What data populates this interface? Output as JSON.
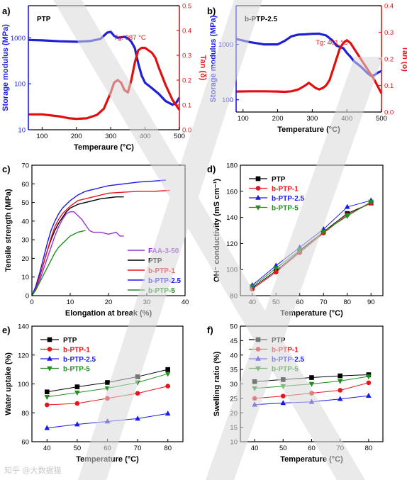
{
  "figure": {
    "watermark_text": "知乎 @大数据猫",
    "colors": {
      "black": "#000000",
      "red": "#e8161c",
      "blue": "#1a1ae6",
      "green": "#1f8f1f",
      "purple": "#9b30d9",
      "thick_red": "#e01010",
      "thick_blue": "#1f1fd6"
    }
  },
  "chart_data": [
    {
      "id": "a",
      "panel_label": "a)",
      "type": "line",
      "dual_axis": true,
      "inset_label": "PTP",
      "annotation": "Tg: 387 °C",
      "xlabel": "Temperaure (°C)",
      "ylabel": "Storage modulus (MPa)",
      "y2label": "Tan (δ)",
      "xlim": [
        60,
        500
      ],
      "xticks": [
        100,
        200,
        300,
        400,
        500
      ],
      "ylim": [
        10,
        5000
      ],
      "yscale": "log",
      "yticks": [
        10,
        100,
        1000
      ],
      "y2lim": [
        0,
        0.5
      ],
      "y2ticks": [
        0.0,
        0.1,
        0.2,
        0.3,
        0.4,
        0.5
      ],
      "series": [
        {
          "axis": "left",
          "color": "#1f1fd6",
          "x": [
            60,
            100,
            150,
            200,
            240,
            270,
            290,
            300,
            310,
            320,
            340,
            350,
            360,
            370,
            380,
            390,
            400,
            420,
            440,
            460,
            480,
            490,
            500
          ],
          "y": [
            900,
            880,
            840,
            820,
            850,
            950,
            1300,
            1350,
            1100,
            1000,
            1050,
            980,
            820,
            600,
            280,
            150,
            105,
            80,
            60,
            42,
            35,
            38,
            50
          ]
        },
        {
          "axis": "right",
          "color": "#e01010",
          "x": [
            60,
            100,
            150,
            180,
            200,
            230,
            260,
            280,
            300,
            310,
            320,
            330,
            340,
            350,
            360,
            370,
            380,
            390,
            400,
            410,
            420,
            430,
            440,
            460,
            480,
            500
          ],
          "y": [
            0.062,
            0.062,
            0.054,
            0.046,
            0.044,
            0.046,
            0.06,
            0.085,
            0.15,
            0.19,
            0.2,
            0.19,
            0.16,
            0.15,
            0.2,
            0.27,
            0.32,
            0.33,
            0.33,
            0.32,
            0.31,
            0.29,
            0.25,
            0.18,
            0.12,
            0.08
          ]
        }
      ]
    },
    {
      "id": "b",
      "panel_label": "b)",
      "type": "line",
      "dual_axis": true,
      "inset_label": "b-PTP-2.5",
      "annotation": "Tg: 401 °C",
      "xlabel": "Temperature (°C)",
      "ylabel": "Storage modulus (MPa)",
      "y2label": "Tan (δ)",
      "xlim": [
        80,
        500
      ],
      "xticks": [
        100,
        200,
        300,
        400,
        500
      ],
      "ylim": [
        60,
        5000
      ],
      "yscale": "log",
      "yticks": [
        100,
        1000
      ],
      "y2lim": [
        0,
        0.4
      ],
      "y2ticks": [
        0.0,
        0.1,
        0.2,
        0.3,
        0.4
      ],
      "series": [
        {
          "axis": "left",
          "color": "#1f1fd6",
          "x": [
            80,
            120,
            160,
            200,
            220,
            240,
            260,
            280,
            300,
            320,
            340,
            360,
            370,
            380,
            390,
            400,
            410,
            420,
            440,
            460,
            470,
            480,
            490,
            500
          ],
          "y": [
            1250,
            1100,
            1000,
            1000,
            1150,
            1400,
            1500,
            1520,
            1550,
            1560,
            1450,
            1150,
            950,
            900,
            850,
            700,
            600,
            500,
            400,
            300,
            270,
            280,
            310,
            330
          ]
        },
        {
          "axis": "right",
          "color": "#e01010",
          "x": [
            80,
            120,
            160,
            200,
            220,
            240,
            260,
            280,
            290,
            300,
            310,
            320,
            330,
            340,
            350,
            360,
            370,
            380,
            390,
            400,
            410,
            420,
            440,
            460,
            480,
            500
          ],
          "y": [
            0.077,
            0.078,
            0.078,
            0.077,
            0.076,
            0.078,
            0.085,
            0.1,
            0.11,
            0.1,
            0.09,
            0.085,
            0.09,
            0.1,
            0.12,
            0.16,
            0.2,
            0.24,
            0.26,
            0.27,
            0.26,
            0.24,
            0.2,
            0.16,
            0.12,
            0.07
          ]
        }
      ]
    },
    {
      "id": "c",
      "panel_label": "c)",
      "type": "line",
      "xlabel": "Elongation at break (%)",
      "ylabel": "Tensile strength (MPa)",
      "xlim": [
        0,
        40
      ],
      "xticks": [
        0,
        10,
        20,
        30,
        40
      ],
      "ylim": [
        0,
        70
      ],
      "yticks": [
        0,
        10,
        20,
        30,
        40,
        50,
        60,
        70
      ],
      "legend_position": "bottom-right",
      "series": [
        {
          "name": "FAA-3-50",
          "color": "#9b30d9",
          "x": [
            0,
            1,
            2,
            3,
            4,
            5,
            6,
            7,
            8,
            9,
            10,
            11,
            12,
            13,
            14,
            15,
            16,
            17,
            18,
            20,
            22,
            23,
            24
          ],
          "y": [
            0,
            3,
            8,
            14,
            20,
            26,
            32,
            37,
            41,
            44,
            45,
            45,
            43,
            41,
            38,
            35,
            34,
            34,
            34,
            33,
            34,
            32,
            32
          ]
        },
        {
          "name": "PTP",
          "color": "#000000",
          "x": [
            0,
            1,
            2,
            3,
            4,
            5,
            6,
            7,
            8,
            9,
            10,
            12,
            14,
            16,
            18,
            20,
            22,
            24
          ],
          "y": [
            0,
            4,
            10,
            17,
            24,
            30,
            35,
            39,
            42,
            45,
            47,
            49,
            50,
            51,
            52,
            52.5,
            53,
            53
          ]
        },
        {
          "name": "b-PTP-1",
          "color": "#e8161c",
          "x": [
            0,
            1,
            2,
            3,
            4,
            5,
            6,
            7,
            8,
            10,
            12,
            14,
            16,
            18,
            20,
            24,
            28,
            32,
            36
          ],
          "y": [
            0,
            4,
            10,
            17,
            24,
            31,
            37,
            41,
            44,
            48,
            51,
            52,
            53,
            54,
            55,
            55.5,
            56,
            56,
            56.5
          ]
        },
        {
          "name": "b-PTP-2.5",
          "color": "#1a1ae6",
          "x": [
            0,
            1,
            2,
            3,
            4,
            5,
            6,
            7,
            8,
            10,
            12,
            14,
            16,
            18,
            20,
            24,
            28,
            32,
            35
          ],
          "y": [
            0,
            5,
            12,
            20,
            28,
            35,
            40,
            44,
            47,
            51,
            54,
            56,
            57,
            58,
            59,
            60,
            61,
            61.5,
            62
          ]
        },
        {
          "name": "b-PTP-5",
          "color": "#1f8f1f",
          "x": [
            0,
            1,
            2,
            3,
            4,
            5,
            6,
            7,
            8,
            9,
            10,
            11,
            12,
            13,
            14
          ],
          "y": [
            0,
            3,
            7,
            11,
            15,
            19,
            23,
            26,
            28,
            30,
            32,
            33,
            34,
            34.5,
            35
          ]
        }
      ]
    },
    {
      "id": "d",
      "panel_label": "d)",
      "type": "line",
      "xlabel": "Temperature (°C)",
      "ylabel": "OH⁻ conductivity (mS cm⁻¹)",
      "xlim": [
        35,
        95
      ],
      "xticks": [
        40,
        50,
        60,
        70,
        80,
        90
      ],
      "ylim": [
        80,
        180
      ],
      "yticks": [
        80,
        100,
        120,
        140,
        160,
        180
      ],
      "legend_position": "top-left",
      "x": [
        40,
        50,
        60,
        70,
        80,
        90
      ],
      "series": [
        {
          "name": "PTP",
          "marker": "square",
          "color": "#000000",
          "values": [
            86,
            99,
            114,
            129,
            143,
            151
          ]
        },
        {
          "name": "b-PTP-1",
          "marker": "circle",
          "color": "#e8161c",
          "values": [
            85,
            98,
            113,
            128,
            142,
            151
          ]
        },
        {
          "name": "b-PTP-2.5",
          "marker": "triangle-up",
          "color": "#1a1ae6",
          "values": [
            88,
            103,
            117,
            131,
            148,
            153
          ]
        },
        {
          "name": "b-PTP-5",
          "marker": "triangle-down",
          "color": "#1f8f1f",
          "values": [
            87,
            101,
            115,
            129,
            141,
            152
          ]
        }
      ]
    },
    {
      "id": "e",
      "panel_label": "e)",
      "type": "line",
      "xlabel": "Temperature (°C)",
      "ylabel": "Water uptake (%)",
      "xlim": [
        35,
        85
      ],
      "xticks": [
        40,
        50,
        60,
        70,
        80
      ],
      "ylim": [
        60,
        140
      ],
      "yticks": [
        60,
        80,
        100,
        120,
        140
      ],
      "legend_position": "top-left",
      "x": [
        40,
        50,
        60,
        70,
        80
      ],
      "series": [
        {
          "name": "PTP",
          "marker": "square",
          "color": "#000000",
          "values": [
            94.5,
            98,
            101,
            105,
            110
          ]
        },
        {
          "name": "b-PTP-1",
          "marker": "circle",
          "color": "#e8161c",
          "values": [
            85.5,
            86.5,
            90,
            93.5,
            98.5
          ]
        },
        {
          "name": "b-PTP-2.5",
          "marker": "triangle-up",
          "color": "#1a1ae6",
          "values": [
            69.5,
            72,
            74,
            76,
            79.5
          ]
        },
        {
          "name": "b-PTP-5",
          "marker": "triangle-down",
          "color": "#1f8f1f",
          "values": [
            91,
            94,
            97,
            101,
            107
          ]
        }
      ]
    },
    {
      "id": "f",
      "panel_label": "f)",
      "type": "line",
      "xlabel": "Temperature (°C)",
      "ylabel": "Swelling ratio (%)",
      "xlim": [
        35,
        85
      ],
      "xticks": [
        40,
        50,
        60,
        70,
        80
      ],
      "ylim": [
        10,
        50
      ],
      "yticks": [
        10,
        15,
        20,
        25,
        30,
        35,
        40,
        45,
        50
      ],
      "legend_position": "top-left",
      "x": [
        40,
        50,
        60,
        70,
        80
      ],
      "series": [
        {
          "name": "PTP",
          "marker": "square",
          "color": "#000000",
          "values": [
            30.8,
            31.5,
            32.2,
            32.8,
            33.2
          ]
        },
        {
          "name": "b-PTP-1",
          "marker": "circle",
          "color": "#e8161c",
          "values": [
            25,
            25.8,
            26.8,
            27.8,
            30.4
          ]
        },
        {
          "name": "b-PTP-2.5",
          "marker": "triangle-up",
          "color": "#1a1ae6",
          "values": [
            22.8,
            23.4,
            23.8,
            24.8,
            25.9
          ]
        },
        {
          "name": "b-PTP-5",
          "marker": "triangle-down",
          "color": "#1f8f1f",
          "values": [
            28.5,
            29.2,
            30,
            31,
            32.6
          ]
        }
      ]
    }
  ]
}
